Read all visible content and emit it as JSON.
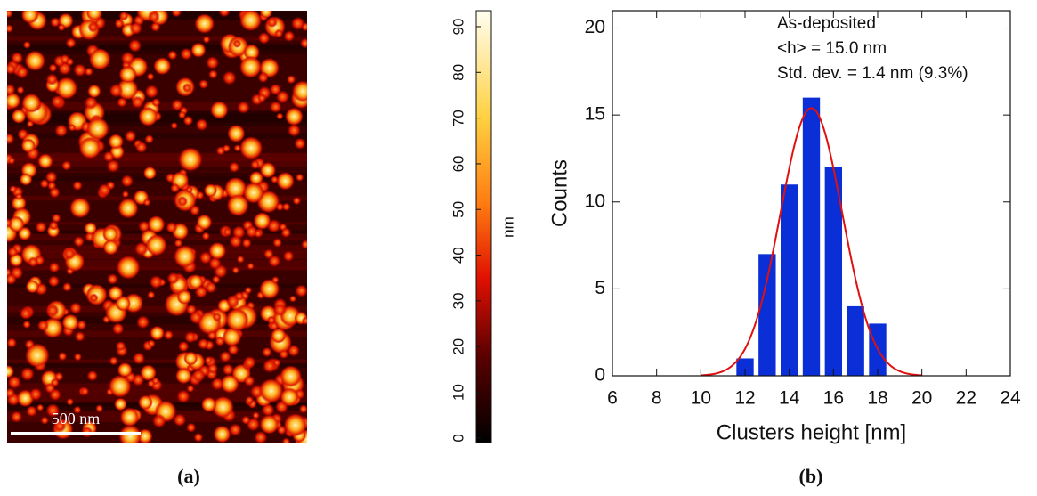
{
  "chart_data": [
    {
      "type": "image",
      "scale_bar_label": "500 nm",
      "caption": "(a)",
      "colorbar": {
        "label": "nm",
        "ylim": [
          -1,
          93.5
        ],
        "yticks": [
          0,
          10,
          20,
          30,
          40,
          50,
          60,
          70,
          80,
          90
        ]
      }
    },
    {
      "type": "bar",
      "caption": "(b)",
      "xlabel": "Clusters height [nm]",
      "ylabel": "Counts",
      "annotations": [
        "As-deposited",
        "<h> = 15.0 nm",
        "Std. dev. = 1.4 nm (9.3%)"
      ],
      "x": [
        12,
        13,
        14,
        15,
        16,
        17,
        18
      ],
      "values": [
        1,
        7,
        11,
        16,
        12,
        4,
        3
      ],
      "color": "#0a2fd6",
      "fit": {
        "mean": 15.0,
        "sd": 1.4,
        "peak": 15.4,
        "range": [
          10,
          20
        ],
        "color": "#e01010"
      },
      "xlim": [
        6,
        24
      ],
      "xticks": [
        6,
        8,
        10,
        12,
        14,
        16,
        18,
        20,
        22,
        24
      ],
      "ylim": [
        0,
        21
      ],
      "yticks": [
        0,
        5,
        10,
        15,
        20
      ]
    }
  ]
}
